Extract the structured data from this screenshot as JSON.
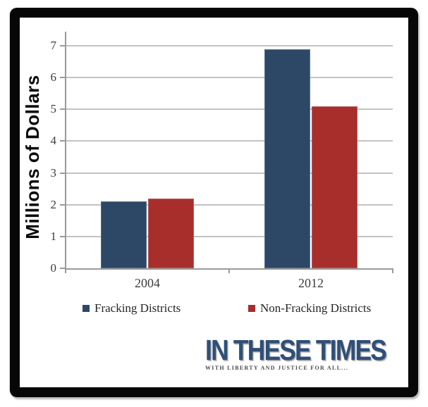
{
  "chart_data": {
    "type": "bar",
    "title": "",
    "ylabel": "Millions of Dollars",
    "xlabel": "",
    "categories": [
      "2004",
      "2012"
    ],
    "series": [
      {
        "name": "Fracking Districts",
        "color": "#2d4866",
        "values": [
          2.1,
          6.9
        ]
      },
      {
        "name": "Non-Fracking Districts",
        "color": "#a82e2c",
        "values": [
          2.2,
          5.1
        ]
      }
    ],
    "ylim": [
      0,
      7
    ],
    "yticks": [
      0,
      1,
      2,
      3,
      4,
      5,
      6,
      7
    ],
    "grid": true,
    "legend_position": "bottom",
    "gridline_color": "#c3c3c3",
    "axis_color": "#9a9a9a",
    "tick_label_color": "#3d3d3d"
  },
  "branding": {
    "logo_text": "IN THESE TIMES",
    "tagline": "WITH LIBERTY AND JUSTICE FOR ALL...",
    "logo_color": "#2f4f78"
  },
  "frame": {
    "color": "#070707"
  }
}
